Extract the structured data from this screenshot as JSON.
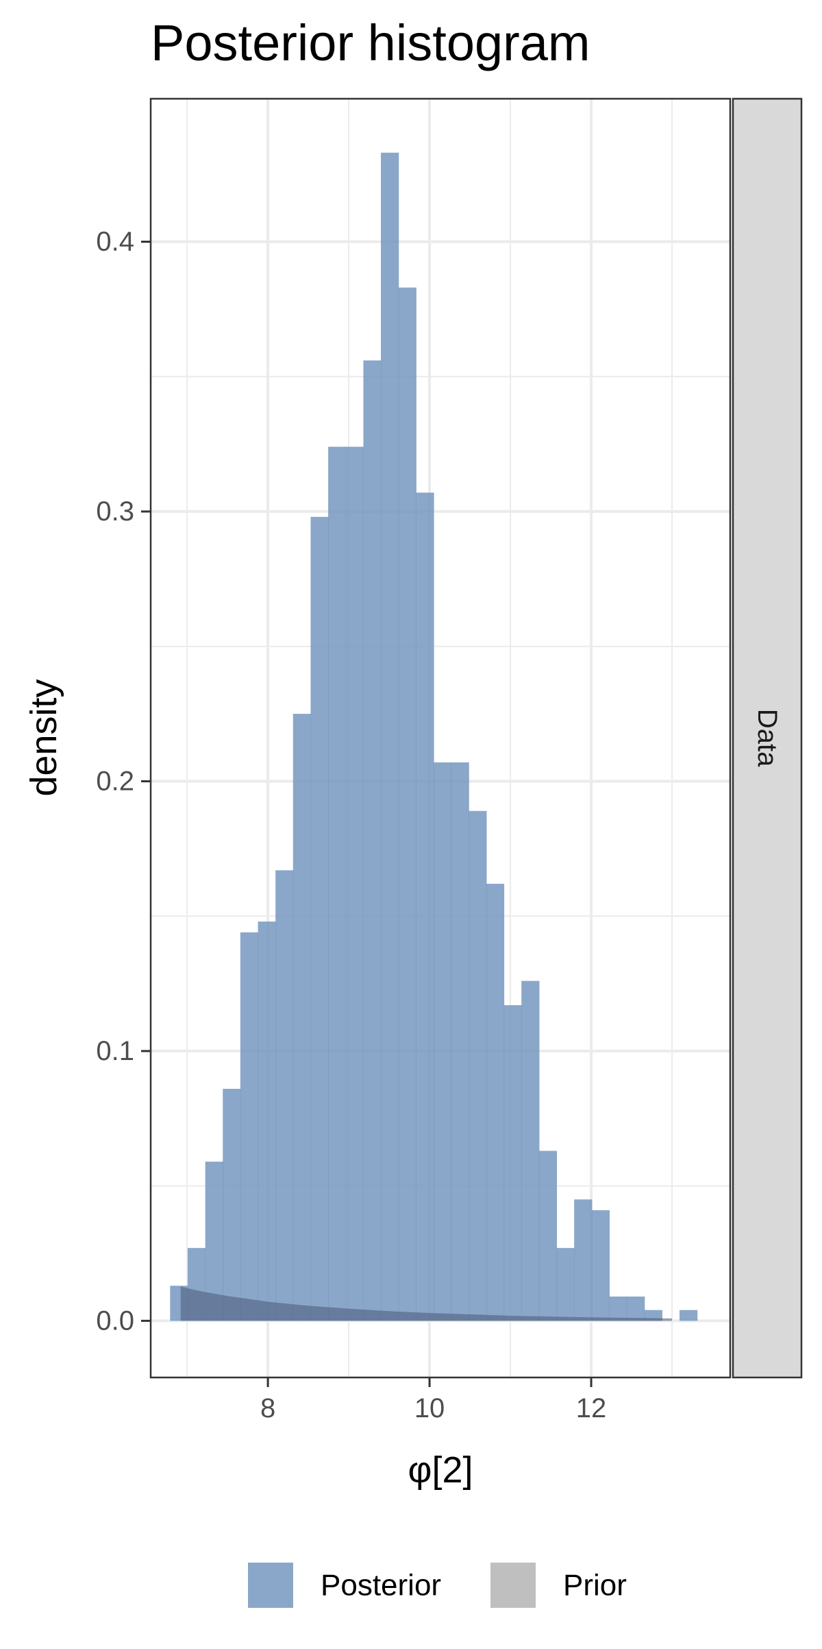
{
  "chart_data": {
    "type": "bar",
    "title": "Posterior histogram",
    "xlabel": "φ[2]",
    "ylabel": "density",
    "facet_label": "Data",
    "xlim": [
      6.55,
      13.72
    ],
    "ylim": [
      -0.021,
      0.453
    ],
    "x_ticks": [
      8,
      10,
      12
    ],
    "x_tick_labels": [
      "8",
      "10",
      "12"
    ],
    "x_minor_ticks": [
      7,
      9,
      11,
      13
    ],
    "y_ticks": [
      0.0,
      0.1,
      0.2,
      0.3,
      0.4
    ],
    "y_tick_labels": [
      "0.0",
      "0.1",
      "0.2",
      "0.3",
      "0.4"
    ],
    "y_minor_ticks": [
      0.05,
      0.15,
      0.25,
      0.35
    ],
    "grid": true,
    "legend_position": "bottom",
    "legend": [
      {
        "label": "Posterior",
        "color": "#7094bd"
      },
      {
        "label": "Prior",
        "color": "#bfbfbf"
      }
    ],
    "series": [
      {
        "name": "Posterior",
        "color": "#7094bd",
        "opacity": 0.82,
        "bin_width": 0.2173,
        "bins": [
          {
            "x0": 6.79,
            "y": 0.013
          },
          {
            "x0": 7.007,
            "y": 0.027
          },
          {
            "x0": 7.225,
            "y": 0.059
          },
          {
            "x0": 7.442,
            "y": 0.086
          },
          {
            "x0": 7.659,
            "y": 0.144
          },
          {
            "x0": 7.877,
            "y": 0.148
          },
          {
            "x0": 8.094,
            "y": 0.167
          },
          {
            "x0": 8.311,
            "y": 0.225
          },
          {
            "x0": 8.529,
            "y": 0.298
          },
          {
            "x0": 8.746,
            "y": 0.324
          },
          {
            "x0": 8.963,
            "y": 0.324
          },
          {
            "x0": 9.181,
            "y": 0.356
          },
          {
            "x0": 9.398,
            "y": 0.433
          },
          {
            "x0": 9.615,
            "y": 0.383
          },
          {
            "x0": 9.833,
            "y": 0.307
          },
          {
            "x0": 10.05,
            "y": 0.207
          },
          {
            "x0": 10.267,
            "y": 0.207
          },
          {
            "x0": 10.485,
            "y": 0.189
          },
          {
            "x0": 10.702,
            "y": 0.162
          },
          {
            "x0": 10.919,
            "y": 0.117
          },
          {
            "x0": 11.137,
            "y": 0.126
          },
          {
            "x0": 11.354,
            "y": 0.063
          },
          {
            "x0": 11.571,
            "y": 0.027
          },
          {
            "x0": 11.789,
            "y": 0.045
          },
          {
            "x0": 12.006,
            "y": 0.041
          },
          {
            "x0": 12.223,
            "y": 0.009
          },
          {
            "x0": 12.441,
            "y": 0.009
          },
          {
            "x0": 12.658,
            "y": 0.004
          },
          {
            "x0": 12.875,
            "y": 0.0
          },
          {
            "x0": 13.093,
            "y": 0.004
          }
        ]
      },
      {
        "name": "Prior",
        "type": "area",
        "color": "#bfbfbf",
        "opacity": 0.3,
        "x": [
          6.92,
          7.0,
          7.2,
          7.5,
          8.0,
          8.5,
          9.0,
          9.5,
          10.0,
          10.5,
          11.0,
          11.5,
          12.0,
          12.5,
          13.0
        ],
        "y": [
          0.0128,
          0.0121,
          0.0108,
          0.0092,
          0.0071,
          0.0056,
          0.0045,
          0.0036,
          0.0029,
          0.0024,
          0.0019,
          0.0016,
          0.0013,
          0.0011,
          0.0009
        ]
      }
    ]
  }
}
